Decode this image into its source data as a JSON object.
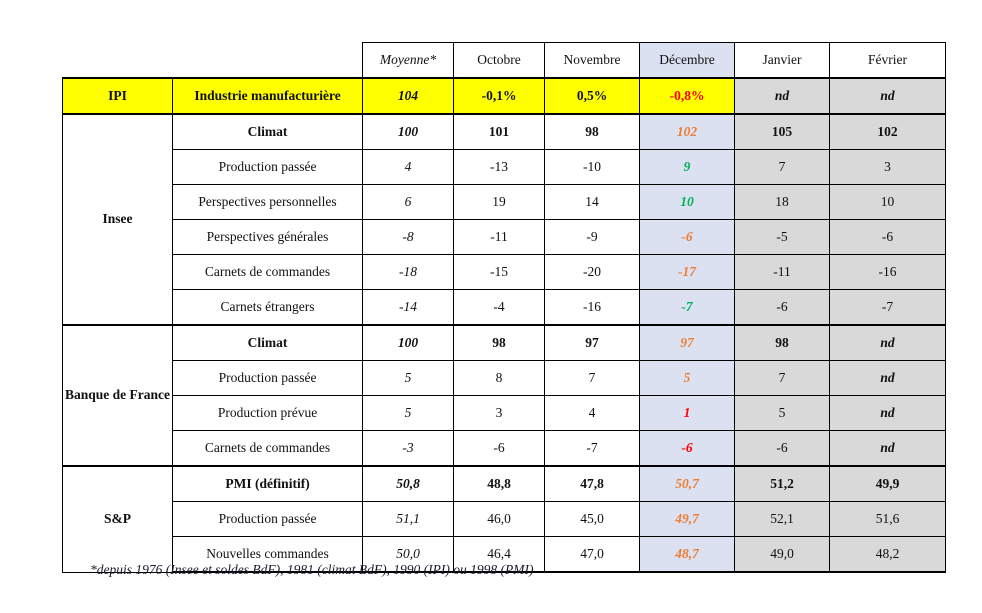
{
  "colors": {
    "highlight_yellow": "#FFFF00",
    "december_bg": "#DCE1F2",
    "forecast_bg": "#D9D9D9",
    "negative_red": "#FF0000",
    "positive_green": "#00B050",
    "warning_orange": "#ED7D31",
    "border_black": "#000000"
  },
  "table": {
    "month_headers": [
      "Moyenne*",
      "Octobre",
      "Novembre",
      "Décembre",
      "Janvier",
      "Février"
    ],
    "groups": [
      {
        "name": "IPI",
        "highlight": true,
        "rows": [
          {
            "label": "Industrie manufacturière",
            "emphasis": true,
            "dec_color": "negative_red",
            "dec_italic": false,
            "values": [
              "104",
              "-0,1%",
              "0,5%",
              "-0,8%",
              "nd",
              "nd"
            ]
          }
        ]
      },
      {
        "name": "Insee",
        "highlight": false,
        "rows": [
          {
            "label": "Climat",
            "emphasis": true,
            "dec_color": "warning_orange",
            "values": [
              "100",
              "101",
              "98",
              "102",
              "105",
              "102"
            ]
          },
          {
            "label": "Production passée",
            "emphasis": false,
            "dec_color": "positive_green",
            "values": [
              "4",
              "-13",
              "-10",
              "9",
              "7",
              "3"
            ]
          },
          {
            "label": "Perspectives personnelles",
            "emphasis": false,
            "dec_color": "positive_green",
            "values": [
              "6",
              "19",
              "14",
              "10",
              "18",
              "10"
            ]
          },
          {
            "label": "Perspectives générales",
            "emphasis": false,
            "dec_color": "warning_orange",
            "values": [
              "-8",
              "-11",
              "-9",
              "-6",
              "-5",
              "-6"
            ]
          },
          {
            "label": "Carnets de commandes",
            "emphasis": false,
            "dec_color": "warning_orange",
            "values": [
              "-18",
              "-15",
              "-20",
              "-17",
              "-11",
              "-16"
            ]
          },
          {
            "label": "Carnets étrangers",
            "emphasis": false,
            "dec_color": "positive_green",
            "values": [
              "-14",
              "-4",
              "-16",
              "-7",
              "-6",
              "-7"
            ]
          }
        ]
      },
      {
        "name": "Banque de France",
        "highlight": false,
        "rows": [
          {
            "label": "Climat",
            "emphasis": true,
            "dec_color": "warning_orange",
            "values": [
              "100",
              "98",
              "97",
              "97",
              "98",
              "nd"
            ]
          },
          {
            "label": "Production passée",
            "emphasis": false,
            "dec_color": "warning_orange",
            "values": [
              "5",
              "8",
              "7",
              "5",
              "7",
              "nd"
            ]
          },
          {
            "label": "Production prévue",
            "emphasis": false,
            "dec_color": "negative_red",
            "values": [
              "5",
              "3",
              "4",
              "1",
              "5",
              "nd"
            ]
          },
          {
            "label": "Carnets de commandes",
            "emphasis": false,
            "dec_color": "negative_red",
            "values": [
              "-3",
              "-6",
              "-7",
              "-6",
              "-6",
              "nd"
            ]
          }
        ]
      },
      {
        "name": "S&P",
        "highlight": false,
        "rows": [
          {
            "label": "PMI (définitif)",
            "emphasis": true,
            "dec_color": "warning_orange",
            "values": [
              "50,8",
              "48,8",
              "47,8",
              "50,7",
              "51,2",
              "49,9"
            ]
          },
          {
            "label": "Production passée",
            "emphasis": false,
            "dec_color": "warning_orange",
            "values": [
              "51,1",
              "46,0",
              "45,0",
              "49,7",
              "52,1",
              "51,6"
            ]
          },
          {
            "label": "Nouvelles commandes",
            "emphasis": false,
            "dec_color": "warning_orange",
            "values": [
              "50,0",
              "46,4",
              "47,0",
              "48,7",
              "49,0",
              "48,2"
            ]
          }
        ]
      }
    ],
    "footnote": "*depuis 1976 (Insee et soldes BdF), 1981 (climat BdF), 1990 (IPI) ou 1998 (PMI)"
  }
}
